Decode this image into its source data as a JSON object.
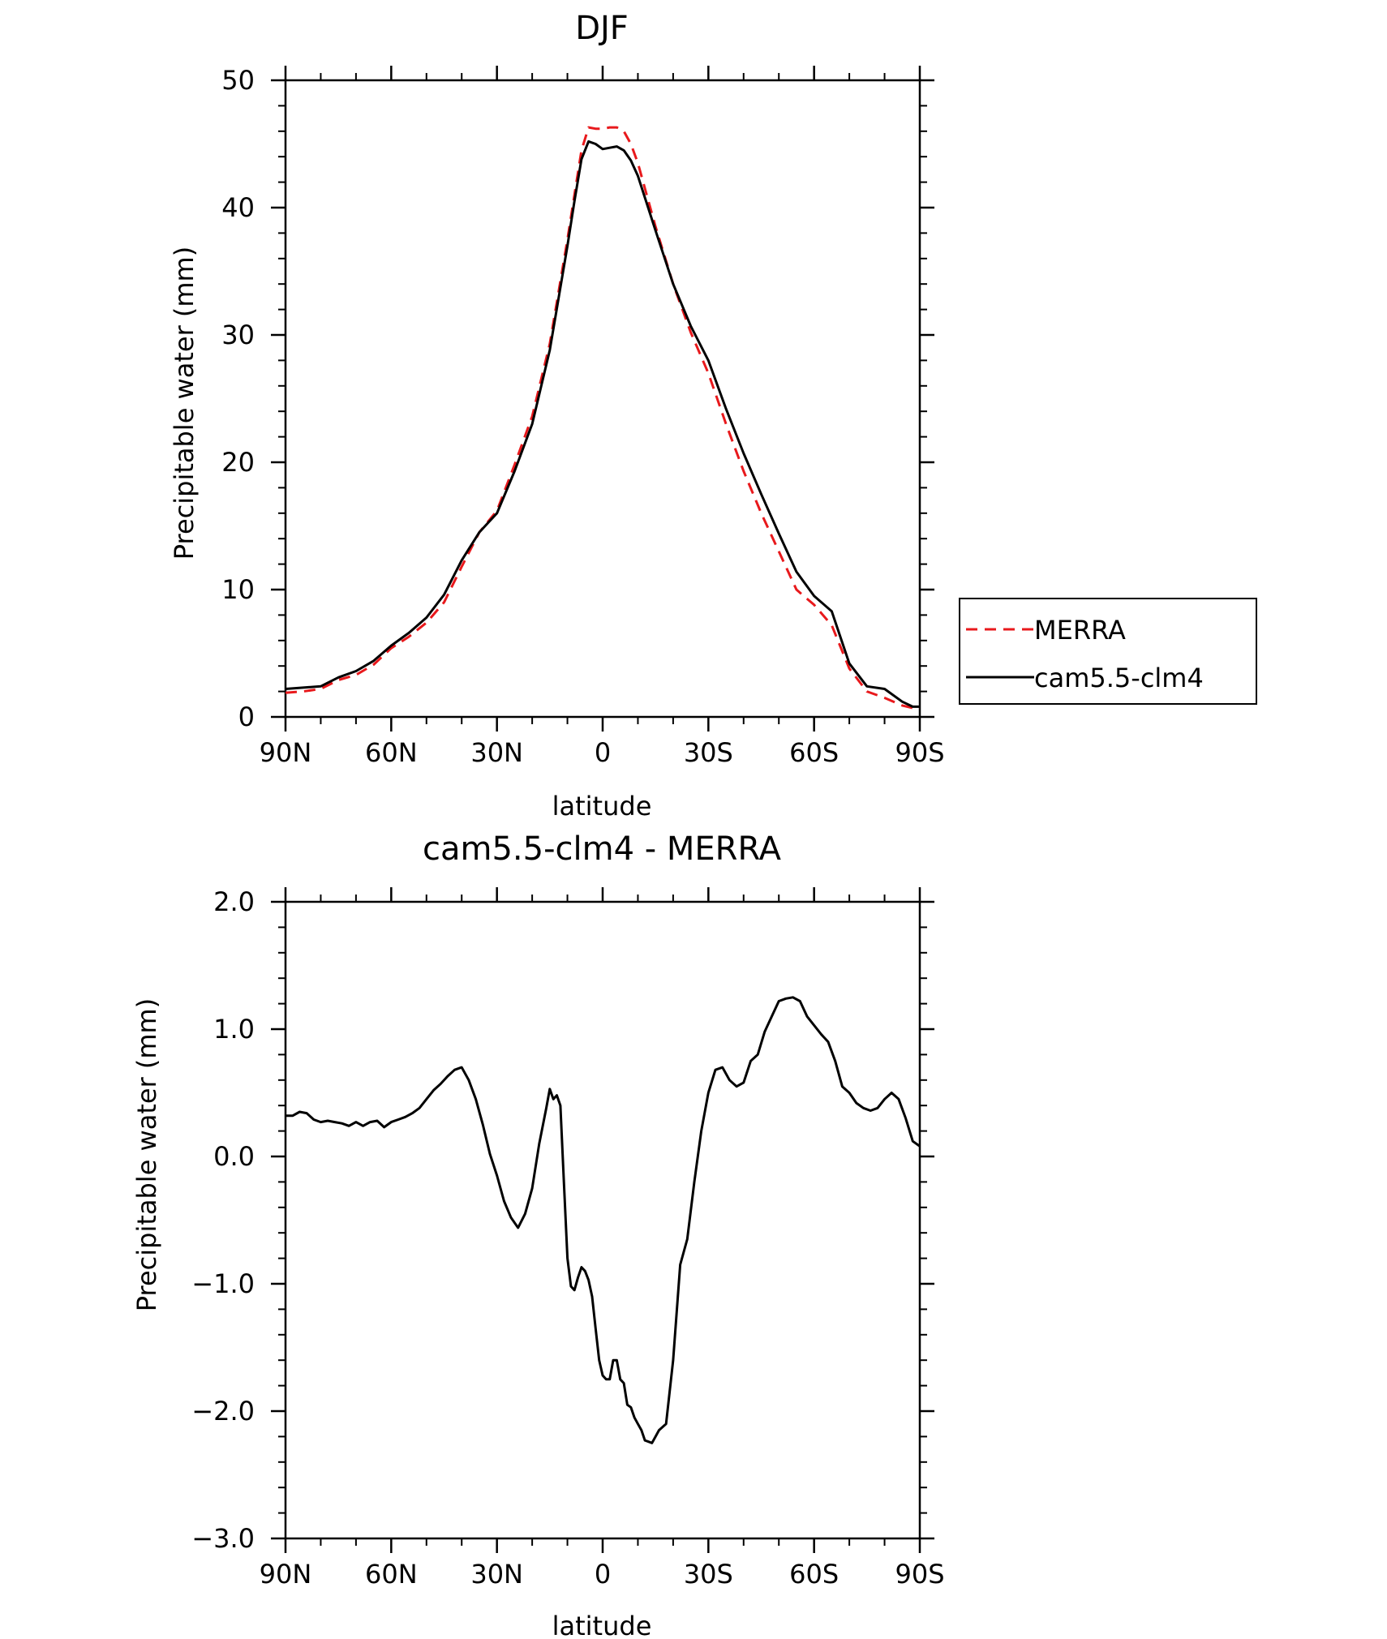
{
  "chart_data": [
    {
      "type": "line",
      "title": "DJF",
      "xlabel": "latitude",
      "ylabel": "Precipitable water (mm)",
      "xlim": [
        90,
        -90
      ],
      "ylim": [
        0,
        50
      ],
      "x_ticks": [
        90,
        60,
        30,
        0,
        -30,
        -60,
        -90
      ],
      "x_tick_labels": [
        "90N",
        "60N",
        "30N",
        "0",
        "30S",
        "60S",
        "90S"
      ],
      "y_ticks": [
        0,
        10,
        20,
        30,
        40,
        50
      ],
      "y_tick_labels": [
        "0",
        "10",
        "20",
        "30",
        "40",
        "50"
      ],
      "legend_position": "right",
      "series": [
        {
          "name": "MERRA",
          "color": "#e8191c",
          "dash": "dashed",
          "x": [
            90,
            85,
            80,
            75,
            70,
            65,
            60,
            55,
            50,
            45,
            40,
            35,
            30,
            25,
            20,
            15,
            10,
            8,
            6,
            4,
            2,
            0,
            -2,
            -4,
            -6,
            -8,
            -10,
            -15,
            -20,
            -25,
            -30,
            -35,
            -40,
            -45,
            -50,
            -55,
            -60,
            -65,
            -70,
            -75,
            -80,
            -85,
            -88,
            -90
          ],
          "y": [
            1.9,
            2.0,
            2.2,
            2.9,
            3.3,
            4.1,
            5.4,
            6.3,
            7.4,
            9.0,
            11.8,
            14.5,
            16.2,
            19.8,
            23.6,
            29.3,
            37.5,
            41.0,
            44.5,
            46.3,
            46.2,
            46.2,
            46.3,
            46.3,
            46.0,
            45.0,
            43.5,
            38.5,
            34.0,
            30.2,
            27.0,
            23.0,
            19.3,
            16.0,
            13.0,
            10.0,
            8.8,
            7.2,
            3.8,
            2.0,
            1.5,
            0.9,
            0.7,
            0.7
          ]
        },
        {
          "name": "cam5.5-clm4",
          "color": "#000000",
          "dash": "solid",
          "x": [
            90,
            85,
            80,
            75,
            70,
            65,
            60,
            55,
            50,
            45,
            40,
            35,
            30,
            25,
            20,
            15,
            10,
            8,
            6,
            4,
            2,
            0,
            -2,
            -4,
            -6,
            -8,
            -10,
            -15,
            -20,
            -25,
            -30,
            -35,
            -40,
            -45,
            -50,
            -55,
            -60,
            -65,
            -70,
            -75,
            -80,
            -85,
            -88,
            -90
          ],
          "y": [
            2.2,
            2.3,
            2.4,
            3.1,
            3.6,
            4.4,
            5.6,
            6.6,
            7.8,
            9.6,
            12.3,
            14.5,
            16.0,
            19.3,
            23.0,
            28.8,
            37.0,
            40.5,
            43.8,
            45.2,
            45.0,
            44.6,
            44.7,
            44.8,
            44.5,
            43.7,
            42.5,
            38.2,
            34.0,
            30.7,
            28.0,
            24.2,
            20.7,
            17.5,
            14.4,
            11.4,
            9.5,
            8.3,
            4.2,
            2.4,
            2.2,
            1.2,
            0.8,
            0.8
          ]
        }
      ]
    },
    {
      "type": "line",
      "title": "cam5.5-clm4 - MERRA",
      "xlabel": "latitude",
      "ylabel": "Precipitable water (mm)",
      "xlim": [
        90,
        -90
      ],
      "ylim": [
        -3.0,
        2.0
      ],
      "x_ticks": [
        90,
        60,
        30,
        0,
        -30,
        -60,
        -90
      ],
      "x_tick_labels": [
        "90N",
        "60N",
        "30N",
        "0",
        "30S",
        "60S",
        "90S"
      ],
      "y_ticks": [
        -3.0,
        -2.0,
        -1.0,
        0.0,
        1.0,
        2.0
      ],
      "y_tick_labels": [
        "−3.0",
        "−2.0",
        "−1.0",
        "0.0",
        "1.0",
        "2.0"
      ],
      "series": [
        {
          "color": "#000000",
          "dash": "solid",
          "x": [
            90,
            88,
            86,
            84,
            82,
            80,
            78,
            76,
            74,
            72,
            70,
            68,
            66,
            64,
            62,
            60,
            58,
            56,
            54,
            52,
            50,
            48,
            46,
            44,
            42,
            40,
            38,
            36,
            34,
            32,
            30,
            28,
            26,
            24,
            22,
            20,
            18,
            16,
            15,
            14,
            13,
            12,
            11,
            10,
            9,
            8,
            7,
            6,
            5,
            4,
            3,
            2,
            1,
            0,
            -1,
            -2,
            -3,
            -4,
            -5,
            -6,
            -7,
            -8,
            -9,
            -10,
            -11,
            -12,
            -13,
            -14,
            -15,
            -16,
            -18,
            -20,
            -22,
            -24,
            -26,
            -28,
            -30,
            -32,
            -34,
            -36,
            -38,
            -40,
            -42,
            -44,
            -46,
            -48,
            -50,
            -52,
            -54,
            -56,
            -58,
            -60,
            -62,
            -64,
            -66,
            -68,
            -70,
            -72,
            -74,
            -76,
            -78,
            -80,
            -82,
            -84,
            -86,
            -88,
            -90
          ],
          "y": [
            0.32,
            0.32,
            0.35,
            0.34,
            0.29,
            0.27,
            0.28,
            0.27,
            0.26,
            0.24,
            0.27,
            0.24,
            0.27,
            0.28,
            0.23,
            0.27,
            0.29,
            0.31,
            0.34,
            0.38,
            0.45,
            0.52,
            0.57,
            0.63,
            0.68,
            0.7,
            0.6,
            0.45,
            0.25,
            0.02,
            -0.15,
            -0.35,
            -0.48,
            -0.56,
            -0.45,
            -0.25,
            0.1,
            0.38,
            0.53,
            0.45,
            0.48,
            0.4,
            -0.2,
            -0.8,
            -1.02,
            -1.05,
            -0.95,
            -0.87,
            -0.9,
            -0.97,
            -1.1,
            -1.35,
            -1.6,
            -1.72,
            -1.75,
            -1.75,
            -1.6,
            -1.6,
            -1.75,
            -1.78,
            -1.95,
            -1.97,
            -2.05,
            -2.1,
            -2.15,
            -2.23,
            -2.24,
            -2.25,
            -2.2,
            -2.15,
            -2.1,
            -1.6,
            -0.85,
            -0.65,
            -0.2,
            0.2,
            0.5,
            0.68,
            0.7,
            0.6,
            0.55,
            0.58,
            0.75,
            0.8,
            0.98,
            1.1,
            1.22,
            1.24,
            1.25,
            1.22,
            1.1,
            1.03,
            0.96,
            0.9,
            0.75,
            0.55,
            0.5,
            0.42,
            0.38,
            0.36,
            0.38,
            0.45,
            0.5,
            0.45,
            0.3,
            0.12,
            0.08
          ]
        }
      ]
    }
  ]
}
